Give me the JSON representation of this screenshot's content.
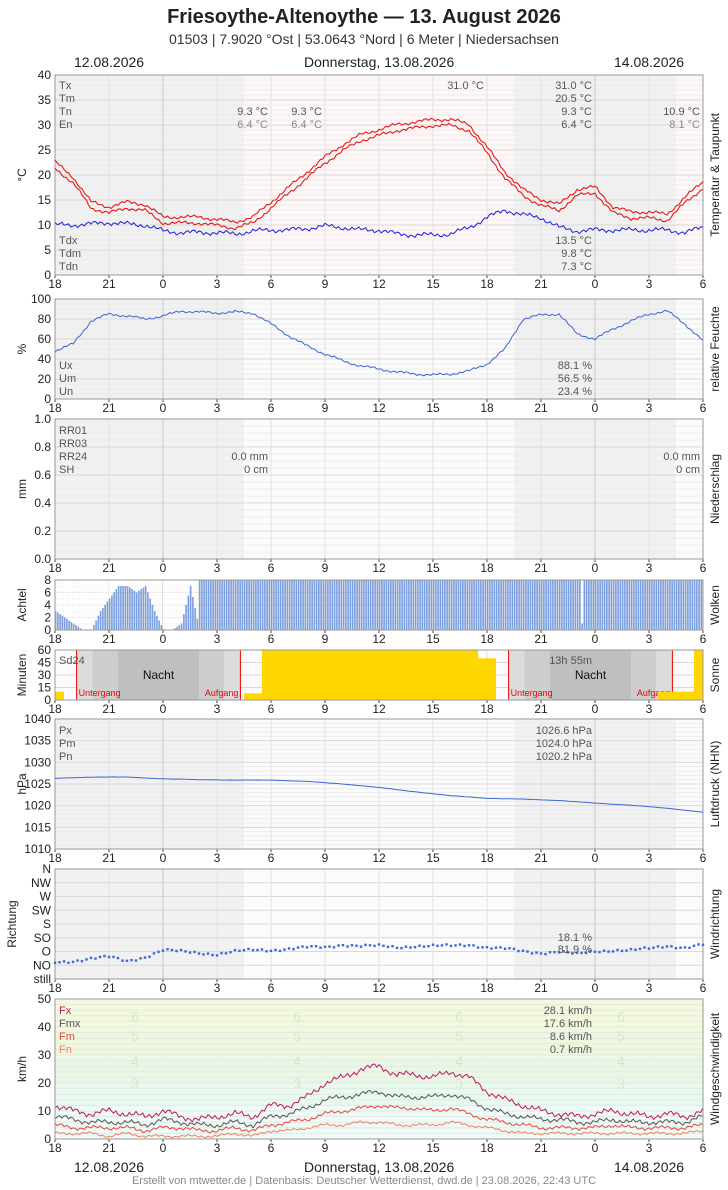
{
  "header": {
    "title": "Friesoythe-Altenoythe  —  13. August 2026",
    "subtitle": "01503  |  7.9020 °Ost  |  53.0643 °Nord  |  6 Meter  |  Niedersachsen",
    "date_left": "12.08.2026",
    "date_center": "Donnerstag, 13.08.2026",
    "date_right": "14.08.2026"
  },
  "footer": "Erstellt von mtwetter.de | Datenbasis: Deutscher Wetterdienst, dwd.de | 23.08.2026, 22:43 UTC",
  "x_ticks": [
    "18",
    "21",
    "0",
    "3",
    "6",
    "9",
    "12",
    "15",
    "18",
    "21",
    "0",
    "3",
    "6"
  ],
  "panels": {
    "temp": {
      "side_label": "Temperatur & Taupunkt",
      "unit": "°C",
      "yticks": [
        "0",
        "5",
        "10",
        "15",
        "20",
        "25",
        "30",
        "35",
        "40"
      ],
      "legend_top": [
        "Tx",
        "Tm",
        "Tn",
        "En"
      ],
      "legend_bottom": [
        "Tdx",
        "Tdm",
        "Tdn"
      ],
      "prev_day": {
        "tn": "9.3 °C",
        "en": "6.4 °C"
      },
      "day": {
        "tn": "9.3 °C",
        "en": "6.4 °C",
        "tx_at_max": "31.0 °C"
      },
      "next_day": {
        "tn": "10.9 °C",
        "en": "8.1 °C"
      },
      "summary": {
        "tx": "31.0 °C",
        "tm": "20.5 °C",
        "tn": "9.3 °C",
        "en": "6.4 °C",
        "tdx": "13.5 °C",
        "tdm": "9.8 °C",
        "tdn": "7.3 °C"
      },
      "color_temp": "#e31a1c",
      "color_dew": "#1f1fd6"
    },
    "humidity": {
      "side_label": "relative Feuchte",
      "unit": "%",
      "yticks": [
        "0",
        "20",
        "40",
        "60",
        "80",
        "100"
      ],
      "legend": [
        "Ux",
        "Um",
        "Un"
      ],
      "summary": {
        "ux": "88.1 %",
        "um": "56.5 %",
        "un": "23.4 %"
      },
      "color": "#3a66d6"
    },
    "precip": {
      "side_label": "Niederschlag",
      "unit": "mm",
      "yticks": [
        "0.0",
        "0.2",
        "0.4",
        "0.6",
        "0.8",
        "1.0"
      ],
      "legend": [
        "RR01",
        "RR03",
        "RR24",
        "SH"
      ],
      "day": {
        "rr24": "0.0 mm",
        "sh": "0 cm"
      },
      "next_day": {
        "rr24": "0.0 mm",
        "sh": "0 cm"
      }
    },
    "clouds": {
      "side_label": "Wolken",
      "unit": "Achtel",
      "yticks": [
        "0",
        "2",
        "4",
        "6",
        "8"
      ],
      "color": "#7ea2e3"
    },
    "sun": {
      "side_label": "Sonne",
      "unit": "Minuten",
      "yticks": [
        "0",
        "15",
        "30",
        "45",
        "60"
      ],
      "legend": "Sd24",
      "sunshine": "13h 55m",
      "night_label": "Nacht",
      "sunset_label": "Untergang",
      "sunrise_label": "Aufgang",
      "color": "#ffd700"
    },
    "pressure": {
      "side_label": "Luftdruck (NHN)",
      "unit": "hPa",
      "yticks": [
        "1010",
        "1015",
        "1020",
        "1025",
        "1030",
        "1035",
        "1040"
      ],
      "legend": [
        "Px",
        "Pm",
        "Pn"
      ],
      "summary": {
        "px": "1026.6 hPa",
        "pm": "1024.0 hPa",
        "pn": "1020.2 hPa"
      },
      "color": "#3a66d6"
    },
    "winddir": {
      "side_label": "Windrichtung",
      "unit": "Richtung",
      "yticks": [
        "still",
        "NO",
        "O",
        "SO",
        "S",
        "SW",
        "W",
        "NW",
        "N"
      ],
      "summary": {
        "a": "18.1 %",
        "b": "81.9 %"
      },
      "color": "#3a66d6"
    },
    "wind": {
      "side_label": "Windgeschwindigkeit",
      "unit": "km/h",
      "yticks": [
        "0",
        "10",
        "20",
        "30",
        "40",
        "50"
      ],
      "legend": [
        "Fx",
        "Fmx",
        "Fm",
        "Fn"
      ],
      "summary": {
        "fx": "28.1 km/h",
        "fmx": "17.6 km/h",
        "fm": "8.6 km/h",
        "fn": "0.7 km/h"
      },
      "beaufort": [
        "3",
        "4",
        "5",
        "6"
      ],
      "colors": {
        "fx": "#c2185b",
        "fmx": "#555555",
        "fm": "#e8453c",
        "fn": "#f08060"
      }
    }
  },
  "chart_data": [
    {
      "type": "line",
      "title": "Temperatur & Taupunkt",
      "ylabel": "°C",
      "ylim": [
        0,
        40
      ],
      "x": [
        -6,
        -5,
        -4,
        -3,
        -2,
        -1,
        0,
        1,
        2,
        3,
        4,
        5,
        6,
        7,
        8,
        9,
        10,
        11,
        12,
        13,
        14,
        15,
        16,
        17,
        18,
        19,
        20,
        21,
        22,
        23,
        24,
        25,
        26,
        27,
        28,
        29,
        30
      ],
      "series": [
        {
          "name": "Temperatur",
          "values": [
            22,
            19,
            14,
            13,
            14,
            13.5,
            11,
            11,
            11,
            10.5,
            10,
            11,
            14,
            17,
            20,
            23,
            25.5,
            27.5,
            28.5,
            29.5,
            30,
            30.5,
            30.5,
            29.5,
            25,
            20,
            16.5,
            14.5,
            13.5,
            16.5,
            17,
            13,
            12,
            12,
            11.5,
            15,
            18
          ]
        },
        {
          "name": "Taupunkt",
          "values": [
            10,
            10,
            10.2,
            10.5,
            10.2,
            10,
            8.8,
            8.5,
            8.5,
            8.5,
            8.2,
            8.8,
            9,
            9,
            9.3,
            9.8,
            9.5,
            9,
            9,
            8.2,
            8,
            8,
            8.2,
            9.5,
            11.5,
            13,
            12,
            11.5,
            9.5,
            8.8,
            9,
            9,
            9,
            9,
            9,
            8.5,
            9.5
          ]
        }
      ]
    },
    {
      "type": "line",
      "title": "relative Feuchte",
      "ylabel": "%",
      "ylim": [
        0,
        100
      ],
      "x": [
        -6,
        -5,
        -4,
        -3,
        -2,
        -1,
        0,
        1,
        2,
        3,
        4,
        5,
        6,
        7,
        8,
        9,
        10,
        11,
        12,
        13,
        14,
        15,
        16,
        17,
        18,
        19,
        20,
        21,
        22,
        23,
        24,
        25,
        26,
        27,
        28,
        29,
        30
      ],
      "series": [
        {
          "name": "Feuchte",
          "values": [
            48,
            55,
            78,
            85,
            83,
            80,
            83,
            88,
            87,
            86,
            87,
            86,
            75,
            63,
            53,
            45,
            38,
            33,
            30,
            27,
            25,
            24,
            25,
            28,
            35,
            50,
            80,
            84,
            85,
            65,
            60,
            70,
            78,
            85,
            88,
            75,
            58
          ]
        }
      ]
    },
    {
      "type": "bar",
      "title": "Niederschlag",
      "ylabel": "mm",
      "ylim": [
        0,
        1
      ],
      "x": [],
      "values": []
    },
    {
      "type": "bar",
      "title": "Wolken",
      "ylabel": "Achtel",
      "ylim": [
        0,
        8
      ],
      "x": [
        -6,
        -5.5,
        -5,
        -4.5,
        -4,
        -3.5,
        -3,
        -2.5,
        -2,
        -1.5,
        -1,
        -0.5,
        0,
        0.5,
        1,
        1.5,
        2
      ],
      "values": [
        3,
        2,
        1,
        0,
        0,
        3,
        5,
        7,
        7,
        6,
        7,
        3,
        0,
        0,
        1,
        7,
        0
      ]
    },
    {
      "type": "bar",
      "title": "Sonne",
      "ylabel": "Minuten",
      "ylim": [
        0,
        60
      ],
      "x": [
        -6,
        -5,
        -4,
        -3,
        -2,
        -1,
        0,
        1,
        2,
        3,
        4,
        5,
        6,
        7,
        8,
        9,
        10,
        11,
        12,
        13,
        14,
        15,
        16,
        17,
        18,
        19,
        20,
        21,
        22,
        23,
        24,
        25,
        26,
        27,
        28,
        29,
        30
      ],
      "values": [
        10,
        0,
        0,
        0,
        0,
        0,
        0,
        0,
        0,
        0,
        0,
        8,
        60,
        60,
        60,
        60,
        60,
        60,
        60,
        60,
        60,
        60,
        60,
        60,
        50,
        0,
        0,
        0,
        0,
        0,
        0,
        0,
        0,
        0,
        10,
        10,
        60
      ]
    },
    {
      "type": "line",
      "title": "Luftdruck (NHN)",
      "ylabel": "hPa",
      "ylim": [
        1010,
        1040
      ],
      "x": [
        -6,
        -4,
        -2,
        0,
        2,
        4,
        6,
        8,
        10,
        12,
        14,
        16,
        18,
        20,
        22,
        24,
        26,
        28,
        30
      ],
      "series": [
        {
          "name": "Luftdruck",
          "values": [
            1026.3,
            1026.6,
            1026.6,
            1026.2,
            1026.0,
            1025.9,
            1025.9,
            1025.6,
            1025.0,
            1024.2,
            1023.2,
            1022.3,
            1021.7,
            1021.5,
            1021.2,
            1020.6,
            1020.1,
            1019.4,
            1018.5
          ]
        }
      ]
    },
    {
      "type": "scatter",
      "title": "Windrichtung",
      "ylabel": "Richtung",
      "y_categories": [
        "still",
        "NO",
        "O",
        "SO",
        "S",
        "SW",
        "W",
        "NW",
        "N"
      ],
      "x": [
        -6,
        -5,
        -4,
        -3,
        -2,
        -1,
        0,
        1,
        2,
        3,
        4,
        5,
        6,
        7,
        8,
        9,
        10,
        11,
        12,
        13,
        14,
        15,
        16,
        17,
        18,
        19,
        20,
        21,
        22,
        23,
        24,
        25,
        26,
        27,
        28,
        29,
        30
      ],
      "values": [
        1.2,
        1.3,
        1.5,
        1.6,
        1.3,
        1.6,
        2.1,
        2.0,
        1.9,
        1.8,
        2.0,
        2.1,
        2.1,
        2.2,
        2.3,
        2.3,
        2.5,
        2.4,
        2.4,
        2.3,
        2.4,
        2.4,
        2.4,
        2.5,
        2.3,
        2.2,
        2.0,
        1.9,
        2.0,
        1.8,
        2.0,
        2.1,
        2.1,
        2.2,
        2.4,
        2.3,
        2.5
      ]
    },
    {
      "type": "line",
      "title": "Windgeschwindigkeit",
      "ylabel": "km/h",
      "ylim": [
        0,
        50
      ],
      "x": [
        -6,
        -5,
        -4,
        -3,
        -2,
        -1,
        0,
        1,
        2,
        3,
        4,
        5,
        6,
        7,
        8,
        9,
        10,
        11,
        12,
        13,
        14,
        15,
        16,
        17,
        18,
        19,
        20,
        21,
        22,
        23,
        24,
        25,
        26,
        27,
        28,
        29,
        30
      ],
      "series": [
        {
          "name": "Fx",
          "values": [
            12,
            10,
            9,
            10,
            9,
            8,
            10,
            8,
            7,
            8,
            9,
            8,
            12,
            12,
            15,
            20,
            22,
            25,
            26,
            23,
            23,
            22,
            24,
            22,
            17,
            14,
            12,
            10,
            9,
            8,
            9,
            10,
            9,
            8,
            9,
            8,
            10
          ]
        },
        {
          "name": "Fmx",
          "values": [
            8,
            7,
            6,
            6,
            6,
            5,
            7,
            6,
            5,
            5,
            6,
            5,
            8,
            9,
            11,
            14,
            15,
            16,
            17,
            15,
            15,
            15,
            16,
            14,
            11,
            9,
            8,
            7,
            7,
            6,
            6,
            7,
            6,
            6,
            6,
            6,
            8
          ]
        },
        {
          "name": "Fm",
          "values": [
            5,
            4,
            4,
            4,
            4,
            3,
            4,
            4,
            3,
            3,
            4,
            3,
            5,
            6,
            7,
            9,
            10,
            11,
            12,
            11,
            11,
            10,
            11,
            9,
            7,
            6,
            5,
            4,
            4,
            4,
            4,
            5,
            4,
            4,
            4,
            4,
            5
          ]
        },
        {
          "name": "Fn",
          "values": [
            2,
            2,
            2,
            1,
            2,
            1,
            1,
            1,
            1,
            1,
            2,
            1,
            3,
            3,
            4,
            5,
            5,
            6,
            6,
            5,
            5,
            5,
            6,
            5,
            4,
            3,
            2,
            2,
            2,
            2,
            2,
            2,
            2,
            2,
            2,
            2,
            3
          ]
        }
      ]
    }
  ]
}
